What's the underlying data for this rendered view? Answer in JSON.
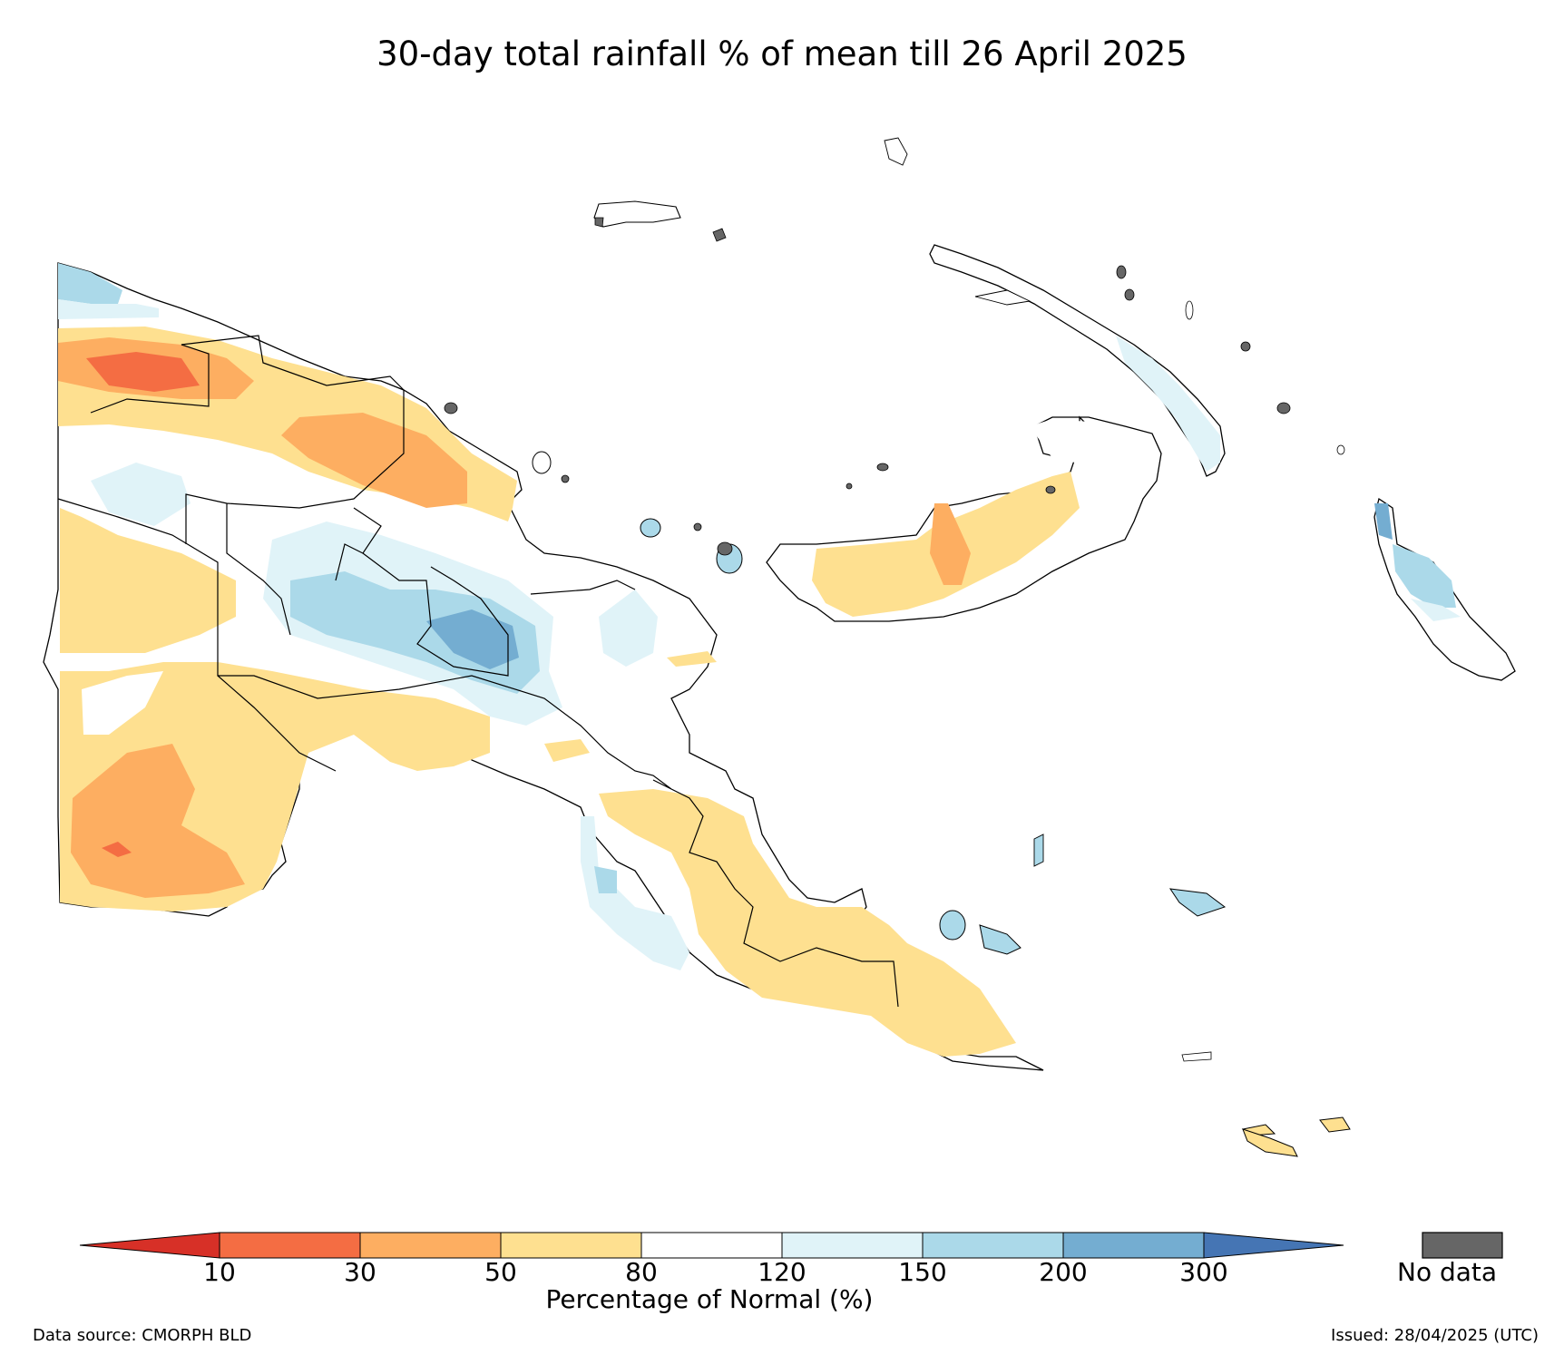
{
  "title": "30-day total rainfall % of mean till 26 April 2025",
  "colorbar": {
    "label": "Percentage of Normal (%)",
    "ticks": [
      "10",
      "30",
      "50",
      "80",
      "120",
      "150",
      "200",
      "300"
    ],
    "under_color": "#d73027",
    "over_color": "#4575b4",
    "bins": [
      {
        "range": "10-30",
        "color": "#f46d43"
      },
      {
        "range": "30-50",
        "color": "#fdae61"
      },
      {
        "range": "50-80",
        "color": "#fee090"
      },
      {
        "range": "80-120",
        "color": "#ffffff"
      },
      {
        "range": "120-150",
        "color": "#e0f3f8"
      },
      {
        "range": "150-200",
        "color": "#abd9e9"
      },
      {
        "range": "200-300",
        "color": "#74add1"
      }
    ]
  },
  "no_data": {
    "label": "No data",
    "color": "#666666"
  },
  "footer": {
    "source": "Data source: CMORPH BLD",
    "issued": "Issued: 28/04/2025 (UTC)"
  }
}
